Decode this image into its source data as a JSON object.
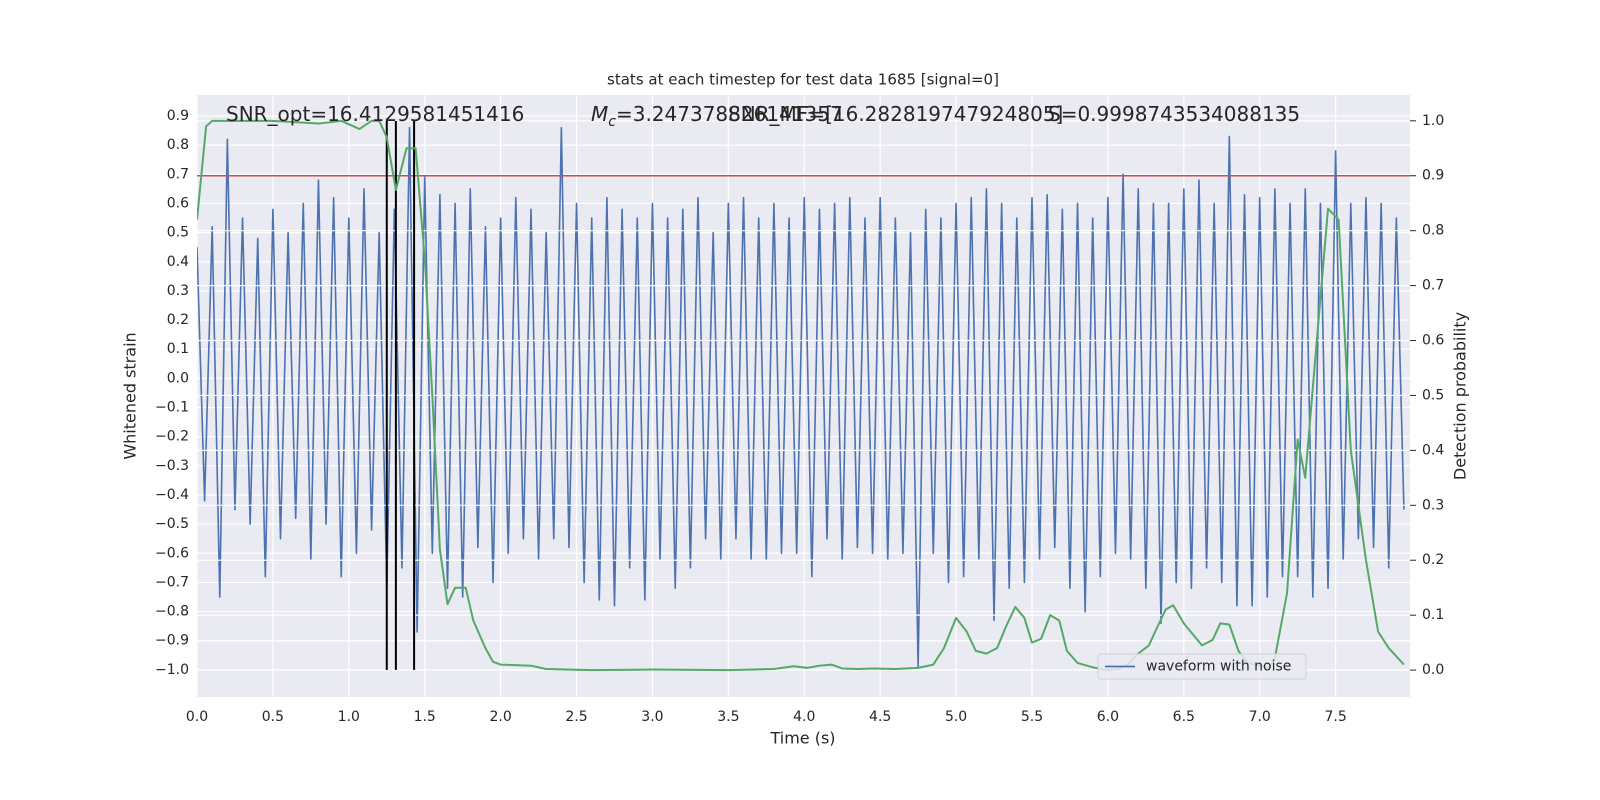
{
  "chart_data": {
    "type": "line",
    "title": "stats at each timestep for test data 1685 [signal=0]",
    "xlabel": "Time (s)",
    "ylabel": "Whitened strain",
    "y2label": "Detection probability",
    "annotations": [
      {
        "text": "SNR_opt=16.4129581451416"
      },
      {
        "symbol": "M",
        "subscript": "c",
        "text": "=3.247378826141357"
      },
      {
        "text": "SNR_MF=[16.282819747924805]"
      },
      {
        "text": "S=0.9998743534088135"
      }
    ],
    "xlim": [
      0,
      7.99
    ],
    "ylim": [
      -1.093,
      0.972
    ],
    "y2lim": [
      -0.049,
      1.047
    ],
    "xticks": [
      {
        "value": 0,
        "label": "0.0"
      },
      0.5,
      {
        "value": 1,
        "label": "1.0"
      },
      1.5,
      {
        "value": 2,
        "label": "2.0"
      },
      2.5,
      {
        "value": 3,
        "label": "3.0"
      },
      3.5,
      {
        "value": 4,
        "label": "4.0"
      },
      4.5,
      {
        "value": 5,
        "label": "5.0"
      },
      5.5,
      {
        "value": 6,
        "label": "6.0"
      },
      6.5,
      {
        "value": 7,
        "label": "7.0"
      },
      7.5
    ],
    "yticks": [
      {
        "value": -1,
        "label": "−1.0"
      },
      {
        "value": -0.9,
        "label": "−0.9"
      },
      {
        "value": -0.8,
        "label": "−0.8"
      },
      {
        "value": -0.7,
        "label": "−0.7"
      },
      {
        "value": -0.6,
        "label": "−0.6"
      },
      {
        "value": -0.5,
        "label": "−0.5"
      },
      {
        "value": -0.4,
        "label": "−0.4"
      },
      {
        "value": -0.3,
        "label": "−0.3"
      },
      {
        "value": -0.2,
        "label": "−0.2"
      },
      {
        "value": -0.1,
        "label": "−0.1"
      },
      {
        "value": 0,
        "label": "0.0"
      },
      0.1,
      0.2,
      0.3,
      0.4,
      0.5,
      0.6,
      0.7,
      0.8,
      0.9
    ],
    "y2ticks": [
      {
        "value": 0,
        "label": "0.0"
      },
      0.1,
      0.2,
      0.3,
      0.4,
      0.5,
      0.6,
      0.7,
      0.8,
      0.9,
      {
        "value": 1,
        "label": "1.0"
      }
    ],
    "grid": true,
    "legend": "lower right",
    "threshold": {
      "value": 0.9,
      "axis": "y2",
      "color": "#c44e52"
    },
    "vlines": [
      1.25,
      1.31,
      1.43
    ],
    "vline_color": "#000000",
    "series": [
      {
        "name": "waveform with noise",
        "color": "#4c72b0",
        "x": [
          0,
          0.05,
          0.1,
          0.15,
          0.2,
          0.25,
          0.3,
          0.35,
          0.4,
          0.45,
          0.5,
          0.55,
          0.6,
          0.65,
          0.7,
          0.75,
          0.8,
          0.85,
          0.9,
          0.95,
          1,
          1.05,
          1.1,
          1.15,
          1.2,
          1.25,
          1.3,
          1.35,
          1.4,
          1.45,
          1.5,
          1.55,
          1.6,
          1.65,
          1.7,
          1.75,
          1.8,
          1.85,
          1.9,
          1.95,
          2,
          2.05,
          2.1,
          2.15,
          2.2,
          2.25,
          2.3,
          2.35,
          2.4,
          2.45,
          2.5,
          2.55,
          2.6,
          2.65,
          2.7,
          2.75,
          2.8,
          2.85,
          2.9,
          2.95,
          3,
          3.05,
          3.1,
          3.15,
          3.2,
          3.25,
          3.3,
          3.35,
          3.4,
          3.45,
          3.5,
          3.55,
          3.6,
          3.65,
          3.7,
          3.75,
          3.8,
          3.85,
          3.9,
          3.95,
          4,
          4.05,
          4.1,
          4.15,
          4.2,
          4.25,
          4.3,
          4.35,
          4.4,
          4.45,
          4.5,
          4.55,
          4.6,
          4.65,
          4.7,
          4.75,
          4.8,
          4.85,
          4.9,
          4.95,
          5,
          5.05,
          5.1,
          5.15,
          5.2,
          5.25,
          5.3,
          5.35,
          5.4,
          5.45,
          5.5,
          5.55,
          5.6,
          5.65,
          5.7,
          5.75,
          5.8,
          5.85,
          5.9,
          5.95,
          6,
          6.05,
          6.1,
          6.15,
          6.2,
          6.25,
          6.3,
          6.35,
          6.4,
          6.45,
          6.5,
          6.55,
          6.6,
          6.65,
          6.7,
          6.75,
          6.8,
          6.85,
          6.9,
          6.95,
          7,
          7.05,
          7.1,
          7.15,
          7.2,
          7.25,
          7.3,
          7.35,
          7.4,
          7.45,
          7.5,
          7.55,
          7.6,
          7.65,
          7.7,
          7.75,
          7.8,
          7.85,
          7.9,
          7.95
        ],
        "values": [
          0.45,
          -0.42,
          0.52,
          -0.75,
          0.82,
          -0.45,
          0.55,
          -0.5,
          0.48,
          -0.68,
          0.58,
          -0.55,
          0.5,
          -0.48,
          0.6,
          -0.62,
          0.68,
          -0.5,
          0.62,
          -0.68,
          0.55,
          -0.6,
          0.65,
          -0.52,
          0.5,
          -0.72,
          0.58,
          -0.65,
          0.86,
          -0.87,
          0.69,
          -0.6,
          0.63,
          -0.72,
          0.6,
          -0.75,
          0.65,
          -0.58,
          0.52,
          -0.7,
          0.55,
          -0.6,
          0.62,
          -0.55,
          0.58,
          -0.62,
          0.5,
          -0.55,
          0.86,
          -0.58,
          0.6,
          -0.7,
          0.55,
          -0.76,
          0.62,
          -0.78,
          0.58,
          -0.65,
          0.55,
          -0.76,
          0.6,
          -0.62,
          0.55,
          -0.72,
          0.58,
          -0.65,
          0.62,
          -0.55,
          0.5,
          -0.62,
          0.6,
          -0.55,
          0.62,
          -0.62,
          0.55,
          -0.62,
          0.6,
          -0.6,
          0.55,
          -0.6,
          0.62,
          -0.68,
          0.58,
          -0.55,
          0.6,
          -0.62,
          0.62,
          -0.58,
          0.55,
          -0.6,
          0.62,
          -0.62,
          0.55,
          -0.6,
          0.5,
          -0.99,
          0.58,
          -0.6,
          0.55,
          -0.7,
          0.6,
          -0.68,
          0.62,
          -0.62,
          0.65,
          -0.83,
          0.6,
          -0.72,
          0.55,
          -0.7,
          0.62,
          -0.62,
          0.63,
          -0.58,
          0.58,
          -0.72,
          0.6,
          -0.8,
          0.55,
          -0.68,
          0.62,
          -0.6,
          0.7,
          -0.62,
          0.65,
          -0.72,
          0.6,
          -0.84,
          0.6,
          -0.7,
          0.65,
          -0.72,
          0.68,
          -0.65,
          0.6,
          -0.7,
          0.83,
          -0.78,
          0.63,
          -0.78,
          0.62,
          -0.75,
          0.65,
          -0.68,
          0.6,
          -0.68,
          0.65,
          -0.75,
          0.6,
          -0.72,
          0.78,
          -0.62,
          0.6,
          -0.55,
          0.62,
          -0.58,
          0.6,
          -0.65,
          0.55,
          -0.45
        ]
      },
      {
        "color": "#55a868",
        "axis": "y2",
        "x": [
          0,
          0.06,
          0.1,
          0.5,
          0.8,
          0.95,
          1.07,
          1.15,
          1.2,
          1.25,
          1.31,
          1.38,
          1.44,
          1.5,
          1.55,
          1.6,
          1.65,
          1.7,
          1.77,
          1.82,
          1.9,
          1.95,
          2,
          2.2,
          2.3,
          2.6,
          3,
          3.5,
          3.8,
          3.93,
          4.02,
          4.1,
          4.18,
          4.25,
          4.35,
          4.45,
          4.6,
          4.75,
          4.85,
          4.92,
          5,
          5.07,
          5.13,
          5.2,
          5.27,
          5.33,
          5.39,
          5.45,
          5.5,
          5.56,
          5.62,
          5.68,
          5.73,
          5.8,
          5.9,
          6,
          6.07,
          6.13,
          6.2,
          6.27,
          6.32,
          6.38,
          6.43,
          6.5,
          6.62,
          6.69,
          6.74,
          6.8,
          6.86,
          6.92,
          7,
          7.06,
          7.1,
          7.18,
          7.25,
          7.3,
          7.37,
          7.45,
          7.52,
          7.6,
          7.7,
          7.78,
          7.85,
          7.95
        ],
        "values": [
          0.82,
          0.99,
          1,
          1,
          0.995,
          1,
          0.985,
          1,
          1,
          0.97,
          0.874,
          0.95,
          0.95,
          0.75,
          0.5,
          0.22,
          0.12,
          0.15,
          0.15,
          0.09,
          0.04,
          0.015,
          0.01,
          0.008,
          0.002,
          0,
          0.001,
          0,
          0.002,
          0.007,
          0.004,
          0.008,
          0.01,
          0.003,
          0.002,
          0.003,
          0.002,
          0.004,
          0.01,
          0.04,
          0.095,
          0.07,
          0.035,
          0.03,
          0.04,
          0.08,
          0.115,
          0.095,
          0.05,
          0.057,
          0.1,
          0.09,
          0.035,
          0.013,
          0.005,
          0,
          0.002,
          0.01,
          0.03,
          0.045,
          0.075,
          0.11,
          0.118,
          0.085,
          0.045,
          0.055,
          0.085,
          0.083,
          0.035,
          0.013,
          0.008,
          0.005,
          0.022,
          0.14,
          0.42,
          0.35,
          0.58,
          0.84,
          0.82,
          0.4,
          0.2,
          0.07,
          0.04,
          0.01
        ]
      }
    ]
  }
}
